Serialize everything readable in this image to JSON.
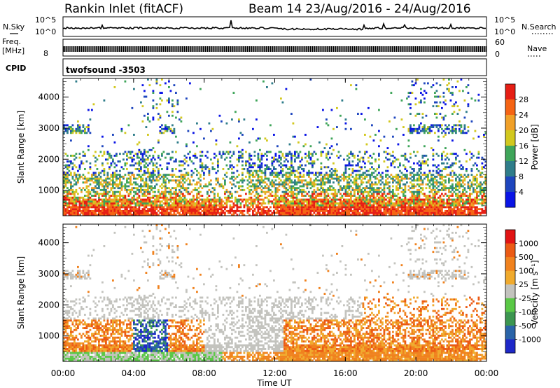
{
  "header": {
    "title": "Rankin Inlet (fitACF)",
    "beam_info": "Beam 14 23/Aug/2016 - 24/Aug/2016"
  },
  "noise_panel": {
    "left_label": "N.Sky",
    "right_label": "N.Search",
    "left_ticks": [
      "10^5",
      "10^0"
    ],
    "right_ticks": [
      "10^5",
      "10^0"
    ]
  },
  "freq_panel": {
    "left_label_1": "Freq.",
    "left_label_2": "[MHz]",
    "left_tick": "8",
    "right_label": "Nave",
    "right_ticks": [
      "60",
      "0"
    ]
  },
  "cpid_panel": {
    "label": "CPID",
    "program": "twofsound -3503"
  },
  "chart_data": [
    {
      "type": "heatmap",
      "name": "power",
      "ylabel": "Slant Range [km]",
      "yticks": [
        1000,
        2000,
        3000,
        4000
      ],
      "ylim": [
        180,
        4600
      ],
      "xlim": [
        0,
        24
      ],
      "colorbar": {
        "label": "Power [dB]",
        "ticks": [
          "4",
          "8",
          "12",
          "16",
          "20",
          "24",
          "28"
        ],
        "colors": [
          "#0a14e6",
          "#1e46be",
          "#2f7d8a",
          "#3fa55a",
          "#d2c81e",
          "#f0a028",
          "#f56414",
          "#e61e14"
        ]
      }
    },
    {
      "type": "heatmap",
      "name": "velocity",
      "ylabel": "Slant Range [km]",
      "yticks": [
        1000,
        2000,
        3000,
        4000
      ],
      "ylim": [
        180,
        4600
      ],
      "xlim": [
        0,
        24
      ],
      "colorbar": {
        "label": "Velocity [m s⁻¹]",
        "ticks": [
          "1000",
          "500",
          "100",
          "25",
          "-25",
          "-100",
          "-500",
          "-1000"
        ],
        "colors": [
          "#1e28c8",
          "#2a64a8",
          "#3c9650",
          "#5ac846",
          "#c3c3be",
          "#f0aa2d",
          "#f0821e",
          "#eb5a14",
          "#e11414"
        ]
      }
    }
  ],
  "xaxis": {
    "label": "Time UT",
    "ticks": [
      "00:00",
      "04:00",
      "08:00",
      "12:00",
      "16:00",
      "20:00",
      "00:00"
    ]
  }
}
